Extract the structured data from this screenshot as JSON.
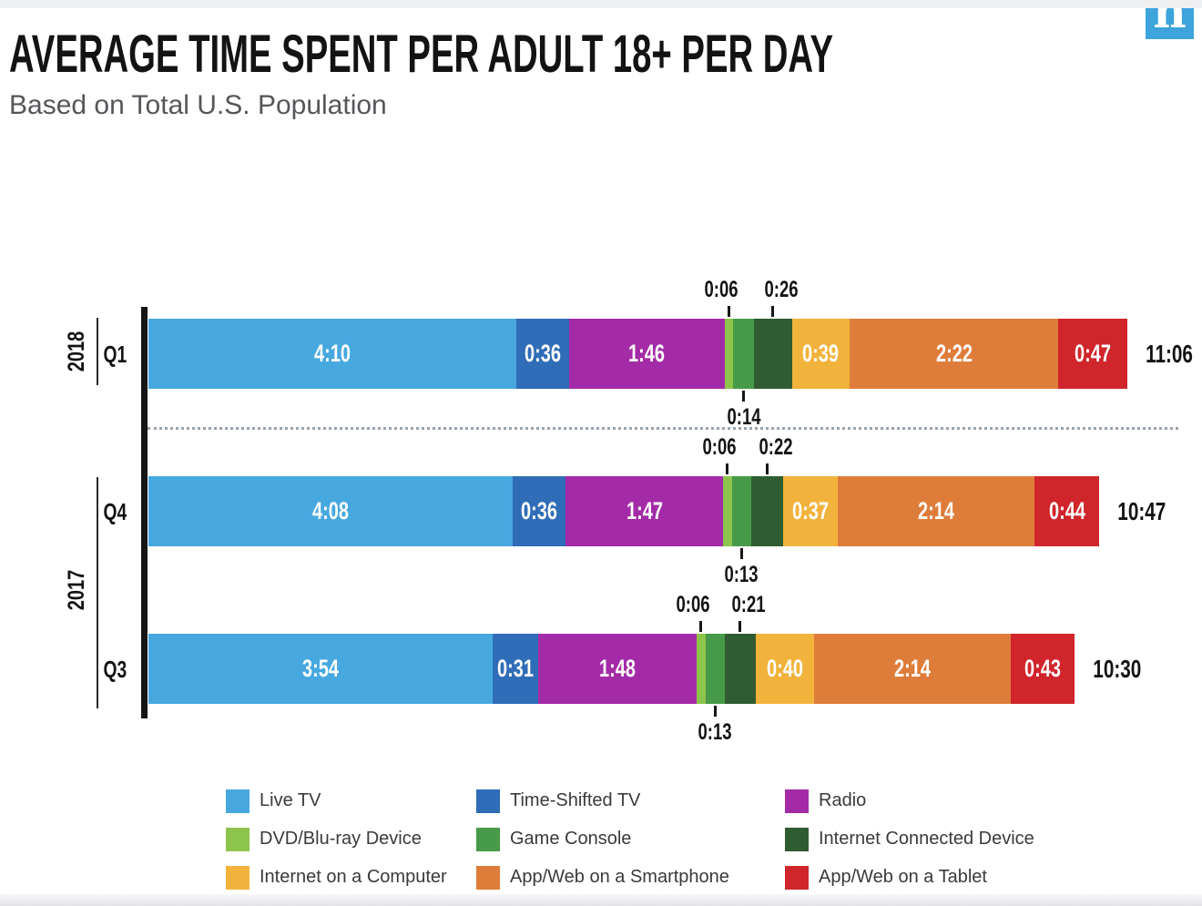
{
  "header": {
    "title": "AVERAGE TIME SPENT PER ADULT 18+ PER DAY",
    "subtitle": "Based on Total U.S. Population",
    "logo_letter": "n",
    "logo_color": "#3ea4dc"
  },
  "chart_data": {
    "type": "bar",
    "orientation": "horizontal",
    "stacked": true,
    "title": "AVERAGE TIME SPENT PER ADULT 18+ PER DAY",
    "subtitle": "Based on Total U.S. Population",
    "value_format": "h:mm per day",
    "legend_position": "bottom",
    "x_axis_hidden": true,
    "series": [
      {
        "name": "Live TV",
        "color": "#47a8e0"
      },
      {
        "name": "Time-Shifted TV",
        "color": "#2f6db8"
      },
      {
        "name": "Radio",
        "color": "#a42ba7"
      },
      {
        "name": "DVD/Blu-ray Device",
        "color": "#8dc44c"
      },
      {
        "name": "Game Console",
        "color": "#479a47"
      },
      {
        "name": "Internet Connected Device",
        "color": "#305c32"
      },
      {
        "name": "Internet on a Computer",
        "color": "#f2b33c"
      },
      {
        "name": "App/Web on a Smartphone",
        "color": "#de7d3a"
      },
      {
        "name": "App/Web on a Tablet",
        "color": "#d0252b"
      }
    ],
    "rows": [
      {
        "year": "2018",
        "quarter": "Q1",
        "values": [
          "4:10",
          "0:36",
          "1:46",
          "0:06",
          "0:14",
          "0:26",
          "0:39",
          "2:22",
          "0:47"
        ],
        "minutes": [
          250,
          36,
          106,
          6,
          14,
          26,
          39,
          142,
          47
        ],
        "total": "11:06",
        "total_minutes": 666
      },
      {
        "year": "2017",
        "quarter": "Q4",
        "values": [
          "4:08",
          "0:36",
          "1:47",
          "0:06",
          "0:13",
          "0:22",
          "0:37",
          "2:14",
          "0:44"
        ],
        "minutes": [
          248,
          36,
          107,
          6,
          13,
          22,
          37,
          134,
          44
        ],
        "total": "10:47",
        "total_minutes": 647
      },
      {
        "year": "2017",
        "quarter": "Q3",
        "values": [
          "3:54",
          "0:31",
          "1:48",
          "0:06",
          "0:13",
          "0:21",
          "0:40",
          "2:14",
          "0:43"
        ],
        "minutes": [
          234,
          31,
          108,
          6,
          13,
          21,
          40,
          134,
          43
        ],
        "total": "10:30",
        "total_minutes": 630
      }
    ],
    "callouts": {
      "above_indices": [
        3,
        5
      ],
      "below_indices": [
        4
      ]
    }
  }
}
